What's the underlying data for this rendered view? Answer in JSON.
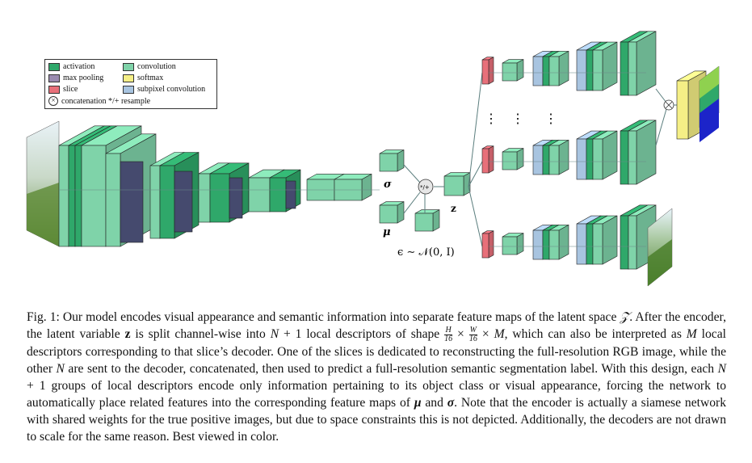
{
  "legend": {
    "activation": "activation",
    "max_pooling": "max pooling",
    "slice": "slice",
    "convolution": "convolution",
    "softmax": "softmax",
    "subpixel_convolution": "subpixel convolution",
    "concatenation": "concatenation */+ resample"
  },
  "colors": {
    "activation": "#2fa86a",
    "activation_light": "#86d6a6",
    "max_pooling": "#454a6e",
    "slice": "#e8707a",
    "convolution": "#7fd3a9",
    "softmax": "#f5ef86",
    "subpixel_convolution": "#a8c4e0"
  },
  "labels": {
    "sigma": "σ",
    "mu": "μ",
    "epsilon": "ϵ ∼ 𝒩(0, I)",
    "z": "z",
    "op": "*/+",
    "ellipsis": "⋮"
  },
  "caption": {
    "line1a": "Fig. 1: Our model encodes visual appearance and semantic information into separate feature maps of the latent space ",
    "line1b": "𝒵",
    "line1c": ".",
    "line2a": "After the encoder, the latent variable ",
    "line2b": "z",
    "line2c": " is split channel-wise into ",
    "line2d": "N",
    "line2e": " + 1 local descriptors of shape ",
    "frac_h_num": "H",
    "frac_h_den": "16",
    "times": " × ",
    "frac_w_num": "W",
    "frac_w_den": "16",
    "line2f": " × ",
    "line2g": "M",
    "line2h": ", which can also",
    "line3a": "be interpreted as ",
    "line3b": "M",
    "line3c": " local descriptors corresponding to that slice’s decoder. One of the slices is dedicated to reconstructing the full-resolution RGB image, while the other ",
    "line3d": "N",
    "line3e": " are sent to the decoder, concatenated, then used to predict a full-resolution semantic segmentation label. With this design, each ",
    "line3f": "N",
    "line3g": " + 1 groups of local descriptors encode only information pertaining to its object class or visual appearance, forcing the network to automatically place related features into the corresponding feature maps of ",
    "line3h": "μ",
    "line3i": " and ",
    "line3j": "σ",
    "line3k": ". Note that the encoder is actually a siamese network with shared weights for the true positive images, but due to space constraints this is not depicted. Additionally, the decoders are not drawn to scale for the same reason. Best viewed in color."
  }
}
